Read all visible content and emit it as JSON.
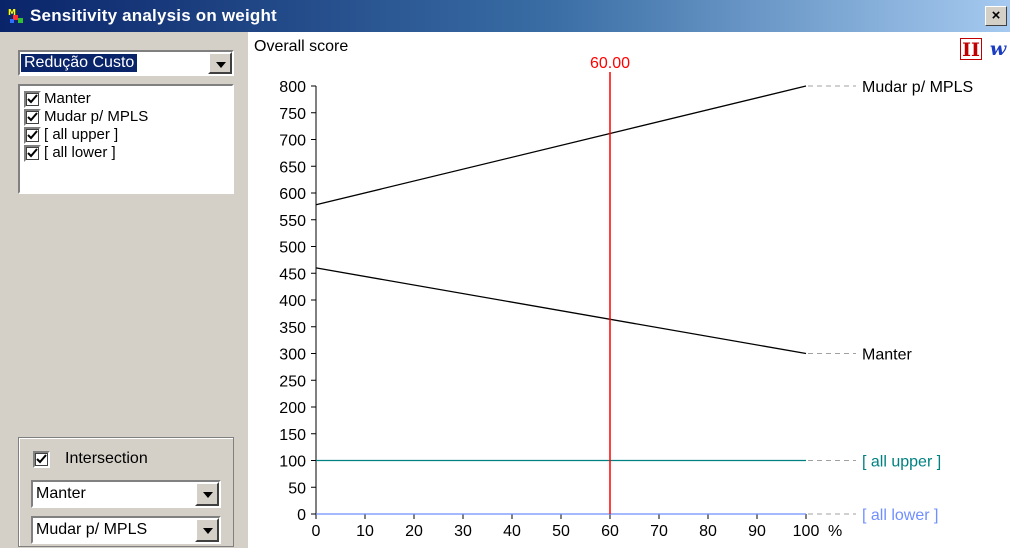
{
  "window": {
    "title": "Sensitivity analysis on weight",
    "close_label": "×"
  },
  "left_panel": {
    "criterion_select": {
      "value": "Redução Custo"
    },
    "alternatives": [
      {
        "label": "Manter",
        "checked": true
      },
      {
        "label": "Mudar p/ MPLS",
        "checked": true
      },
      {
        "label": "[ all upper ]",
        "checked": true
      },
      {
        "label": "[ all lower ]",
        "checked": true
      }
    ],
    "intersection": {
      "label": "Intersection",
      "checked": true,
      "first_select": "Manter",
      "second_select": "Mudar p/ MPLS"
    }
  },
  "toolbar": {
    "icon1": "II",
    "icon2": "w"
  },
  "colors": {
    "selection": "#0a246a",
    "marker": "#ff0000",
    "series_default": "#000000",
    "upper": "#008080",
    "lower": "#6f8fff"
  },
  "chart_data": {
    "type": "line",
    "ylabel": "Overall score",
    "xunit": "%",
    "xlim": [
      0,
      100
    ],
    "ylim": [
      0,
      800
    ],
    "x_ticks": [
      0,
      10,
      20,
      30,
      40,
      50,
      60,
      70,
      80,
      90,
      100
    ],
    "y_ticks": [
      0,
      50,
      100,
      150,
      200,
      250,
      300,
      350,
      400,
      450,
      500,
      550,
      600,
      650,
      700,
      750,
      800
    ],
    "marker": {
      "x": 60,
      "label": "60.00",
      "color": "#ff0000"
    },
    "grid": false,
    "series": [
      {
        "name": "Mudar p/ MPLS",
        "x": [
          0,
          100
        ],
        "y": [
          578,
          800
        ],
        "color": "#000000"
      },
      {
        "name": "Manter",
        "x": [
          0,
          100
        ],
        "y": [
          460,
          300
        ],
        "color": "#000000"
      },
      {
        "name": "[ all upper ]",
        "x": [
          0,
          100
        ],
        "y": [
          100,
          100
        ],
        "color": "#008080"
      },
      {
        "name": "[ all lower ]",
        "x": [
          0,
          100
        ],
        "y": [
          0,
          0
        ],
        "color": "#6f8fff"
      }
    ]
  }
}
